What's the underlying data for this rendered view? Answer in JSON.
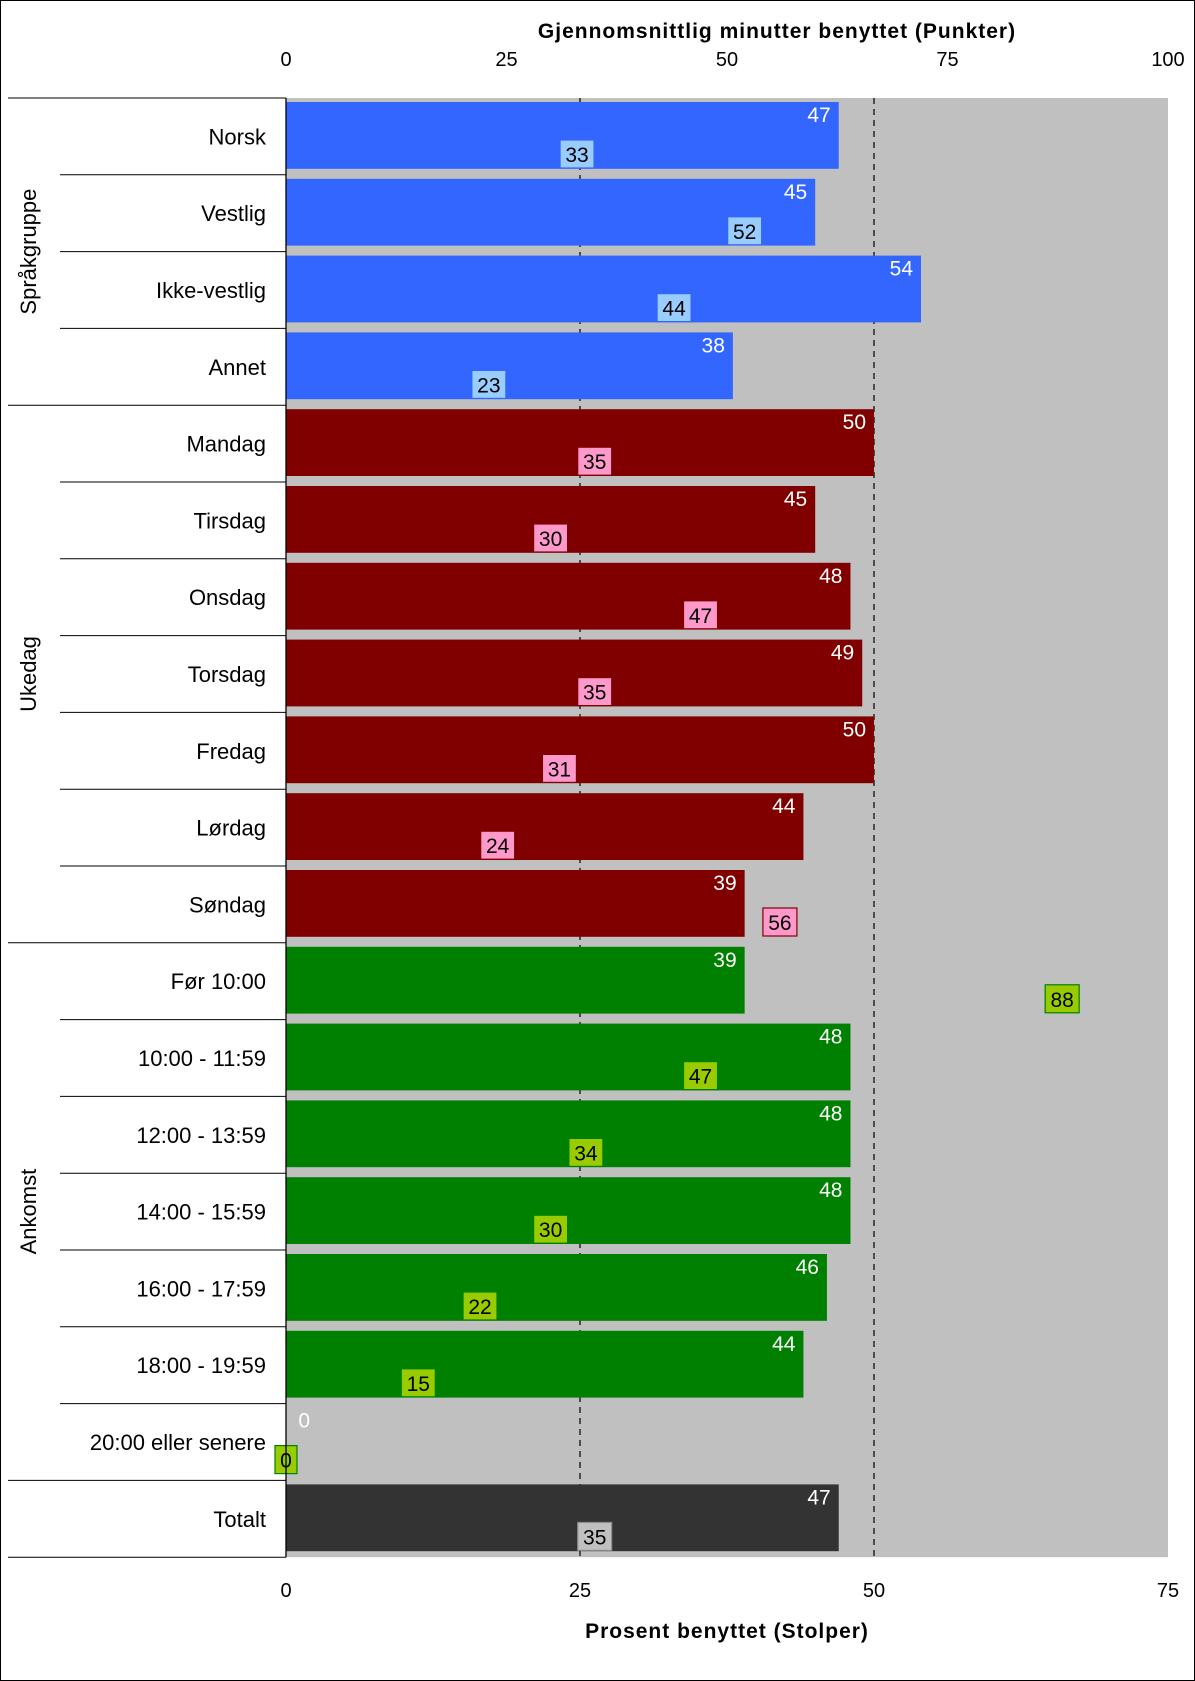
{
  "chart_data": {
    "type": "bar",
    "orientation": "horizontal",
    "top_axis": {
      "title": "Gjennomsnittlig minutter benyttet (Punkter)",
      "range": [
        0,
        100
      ],
      "ticks": [
        "0",
        "25",
        "50",
        "75",
        "100"
      ]
    },
    "bottom_axis": {
      "title": "Prosent benyttet (Stolper)",
      "range": [
        0,
        75
      ],
      "ticks": [
        "0",
        "25",
        "50",
        "75"
      ]
    },
    "reference_line_x": 50,
    "groups": [
      {
        "name": "Språkgruppe",
        "bar_color": "#3366FF",
        "point_color": "#99CCFF",
        "items": [
          {
            "label": "Norsk",
            "bar": 47,
            "point": 33
          },
          {
            "label": "Vestlig",
            "bar": 45,
            "point": 52
          },
          {
            "label": "Ikke-vestlig",
            "bar": 54,
            "point": 44
          },
          {
            "label": "Annet",
            "bar": 38,
            "point": 23
          }
        ]
      },
      {
        "name": "Ukedag",
        "bar_color": "#800000",
        "point_color": "#FF99CC",
        "items": [
          {
            "label": "Mandag",
            "bar": 50,
            "point": 35
          },
          {
            "label": "Tirsdag",
            "bar": 45,
            "point": 30
          },
          {
            "label": "Onsdag",
            "bar": 48,
            "point": 47
          },
          {
            "label": "Torsdag",
            "bar": 49,
            "point": 35
          },
          {
            "label": "Fredag",
            "bar": 50,
            "point": 31
          },
          {
            "label": "Lørdag",
            "bar": 44,
            "point": 24
          },
          {
            "label": "Søndag",
            "bar": 39,
            "point": 56
          }
        ]
      },
      {
        "name": "Ankomst",
        "bar_color": "#008000",
        "point_color": "#99CC00",
        "items": [
          {
            "label": "Før 10:00",
            "bar": 39,
            "point": 88
          },
          {
            "label": "10:00 - 11:59",
            "bar": 48,
            "point": 47
          },
          {
            "label": "12:00 - 13:59",
            "bar": 48,
            "point": 34
          },
          {
            "label": "14:00 - 15:59",
            "bar": 48,
            "point": 30
          },
          {
            "label": "16:00 - 17:59",
            "bar": 46,
            "point": 22
          },
          {
            "label": "18:00 - 19:59",
            "bar": 44,
            "point": 15
          },
          {
            "label": "20:00 eller senere",
            "bar": 0,
            "point": 0
          }
        ]
      },
      {
        "name": "",
        "bar_color": "#333333",
        "point_color": "#C0C0C0",
        "items": [
          {
            "label": "Totalt",
            "bar": 47,
            "point": 35
          }
        ]
      }
    ],
    "plot_background": "#C0C0C0",
    "grid": "vertical dashed at bottom-axis ticks"
  }
}
